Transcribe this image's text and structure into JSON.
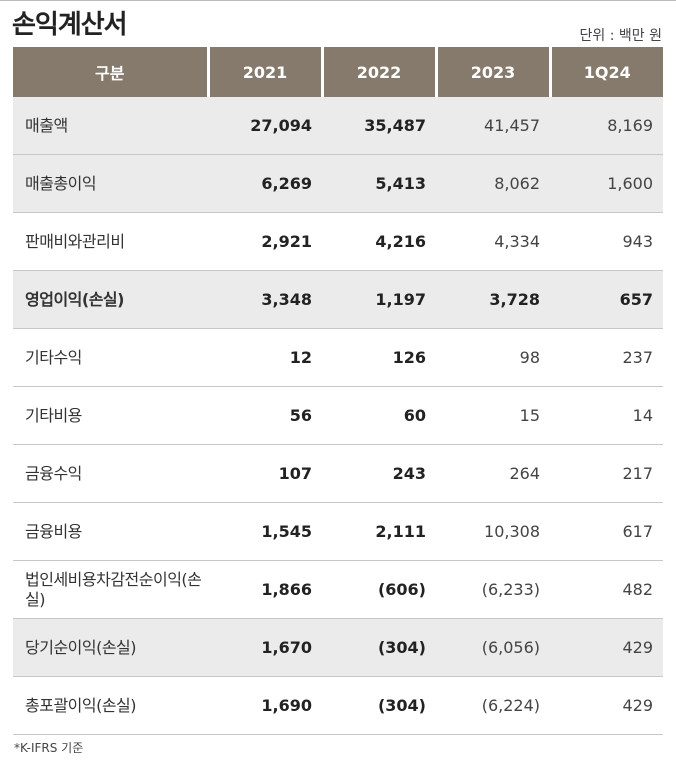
{
  "title": "손익계산서",
  "unit": "단위 : 백만 원",
  "header": [
    "구분",
    "2021",
    "2022",
    "2023",
    "1Q24"
  ],
  "rows": [
    {
      "label": "매출액",
      "values": [
        "27,094",
        "35,487",
        "41,457",
        "8,169"
      ],
      "shaded": true,
      "bold": false
    },
    {
      "label": "매출총이익",
      "values": [
        "6,269",
        "5,413",
        "8,062",
        "1,600"
      ],
      "shaded": true,
      "bold": false
    },
    {
      "label": "판매비와관리비",
      "values": [
        "2,921",
        "4,216",
        "4,334",
        "943"
      ],
      "shaded": false,
      "bold": false
    },
    {
      "label": "영업이익(손실)",
      "values": [
        "3,348",
        "1,197",
        "3,728",
        "657"
      ],
      "shaded": true,
      "bold": true
    },
    {
      "label": "기타수익",
      "values": [
        "12",
        "126",
        "98",
        "237"
      ],
      "shaded": false,
      "bold": false
    },
    {
      "label": "기타비용",
      "values": [
        "56",
        "60",
        "15",
        "14"
      ],
      "shaded": false,
      "bold": false
    },
    {
      "label": "금융수익",
      "values": [
        "107",
        "243",
        "264",
        "217"
      ],
      "shaded": false,
      "bold": false
    },
    {
      "label": "금융비용",
      "values": [
        "1,545",
        "2,111",
        "10,308",
        "617"
      ],
      "shaded": false,
      "bold": false
    },
    {
      "label": "법인세비용차감전순이익(손실)",
      "values": [
        "1,866",
        "(606)",
        "(6,233)",
        "482"
      ],
      "shaded": false,
      "bold": false
    },
    {
      "label": "당기순이익(손실)",
      "values": [
        "1,670",
        "(304)",
        "(6,056)",
        "429"
      ],
      "shaded": true,
      "bold": false
    },
    {
      "label": "총포괄이익(손실)",
      "values": [
        "1,690",
        "(304)",
        "(6,224)",
        "429"
      ],
      "shaded": false,
      "bold": false
    }
  ],
  "note": "*K-IFRS 기준"
}
